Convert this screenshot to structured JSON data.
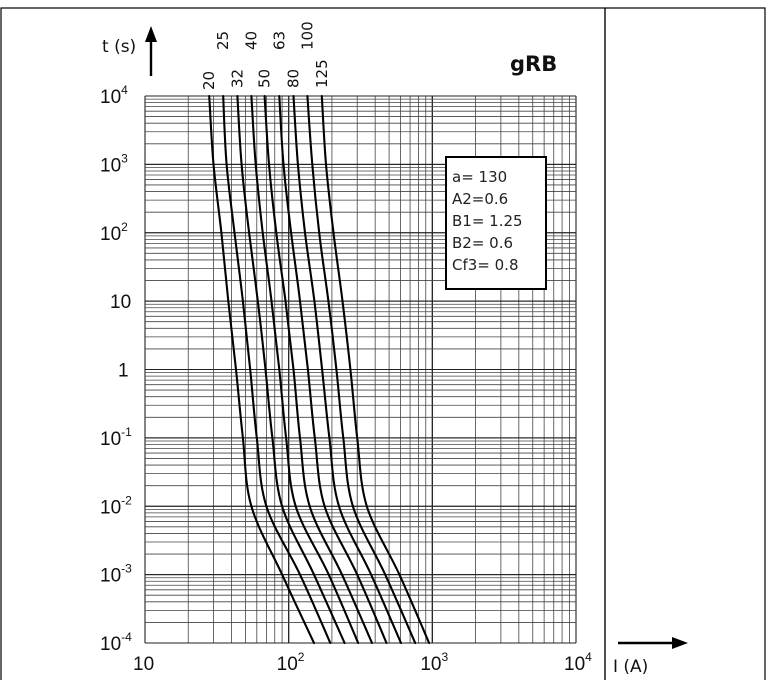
{
  "chart_data": {
    "type": "line",
    "title": "gRB",
    "xlabel": "I (A)",
    "ylabel": "t (s)",
    "x_scale": "log",
    "y_scale": "log",
    "xlim": [
      10,
      10000
    ],
    "ylim": [
      0.0001,
      10000
    ],
    "grid": true,
    "x_ticks": [
      {
        "value": 10,
        "base": "10",
        "exp": ""
      },
      {
        "value": 100,
        "base": "10",
        "exp": "2"
      },
      {
        "value": 1000,
        "base": "10",
        "exp": "3"
      },
      {
        "value": 10000,
        "base": "10",
        "exp": "4"
      }
    ],
    "y_ticks": [
      {
        "value": 10000,
        "base": "10",
        "exp": "4"
      },
      {
        "value": 1000,
        "base": "10",
        "exp": "3"
      },
      {
        "value": 100,
        "base": "10",
        "exp": "2"
      },
      {
        "value": 10,
        "base": "10",
        "exp": ""
      },
      {
        "value": 1,
        "base": "1",
        "exp": ""
      },
      {
        "value": 0.1,
        "base": "10",
        "exp": "-1"
      },
      {
        "value": 0.01,
        "base": "10",
        "exp": "-2"
      },
      {
        "value": 0.001,
        "base": "10",
        "exp": "-3"
      },
      {
        "value": 0.0001,
        "base": "10",
        "exp": "-4"
      }
    ],
    "params": [
      "a= 130",
      "A2=0.6",
      "B1= 1.25",
      "B2= 0.6",
      "Cf3= 0.8"
    ],
    "series": [
      {
        "name": "20",
        "points": [
          [
            28,
            10000
          ],
          [
            30,
            1000
          ],
          [
            34,
            100
          ],
          [
            38,
            10
          ],
          [
            43,
            1
          ],
          [
            48,
            0.1
          ],
          [
            55,
            0.01
          ],
          [
            90,
            0.001
          ],
          [
            150,
            0.0001
          ]
        ]
      },
      {
        "name": "25",
        "points": [
          [
            35,
            10000
          ],
          [
            37,
            1000
          ],
          [
            42,
            100
          ],
          [
            48,
            10
          ],
          [
            54,
            1
          ],
          [
            60,
            0.1
          ],
          [
            70,
            0.01
          ],
          [
            120,
            0.001
          ],
          [
            195,
            0.0001
          ]
        ]
      },
      {
        "name": "32",
        "points": [
          [
            44,
            10000
          ],
          [
            47,
            1000
          ],
          [
            53,
            100
          ],
          [
            61,
            10
          ],
          [
            69,
            1
          ],
          [
            77,
            0.1
          ],
          [
            90,
            0.01
          ],
          [
            150,
            0.001
          ],
          [
            245,
            0.0001
          ]
        ]
      },
      {
        "name": "40",
        "points": [
          [
            55,
            10000
          ],
          [
            59,
            1000
          ],
          [
            66,
            100
          ],
          [
            76,
            10
          ],
          [
            86,
            1
          ],
          [
            96,
            0.1
          ],
          [
            112,
            0.01
          ],
          [
            190,
            0.001
          ],
          [
            305,
            0.0001
          ]
        ]
      },
      {
        "name": "50",
        "points": [
          [
            68,
            10000
          ],
          [
            73,
            1000
          ],
          [
            82,
            100
          ],
          [
            95,
            10
          ],
          [
            108,
            1
          ],
          [
            120,
            0.1
          ],
          [
            140,
            0.01
          ],
          [
            235,
            0.001
          ],
          [
            380,
            0.0001
          ]
        ]
      },
      {
        "name": "63",
        "points": [
          [
            86,
            10000
          ],
          [
            92,
            1000
          ],
          [
            104,
            100
          ],
          [
            120,
            10
          ],
          [
            136,
            1
          ],
          [
            152,
            0.1
          ],
          [
            178,
            0.01
          ],
          [
            300,
            0.001
          ],
          [
            480,
            0.0001
          ]
        ]
      },
      {
        "name": "80",
        "points": [
          [
            108,
            10000
          ],
          [
            116,
            1000
          ],
          [
            130,
            100
          ],
          [
            151,
            10
          ],
          [
            171,
            1
          ],
          [
            192,
            0.1
          ],
          [
            224,
            0.01
          ],
          [
            375,
            0.001
          ],
          [
            605,
            0.0001
          ]
        ]
      },
      {
        "name": "100",
        "points": [
          [
            135,
            10000
          ],
          [
            146,
            1000
          ],
          [
            163,
            100
          ],
          [
            189,
            10
          ],
          [
            215,
            1
          ],
          [
            240,
            0.1
          ],
          [
            280,
            0.01
          ],
          [
            470,
            0.001
          ],
          [
            760,
            0.0001
          ]
        ]
      },
      {
        "name": "125",
        "points": [
          [
            170,
            10000
          ],
          [
            182,
            1000
          ],
          [
            205,
            100
          ],
          [
            237,
            10
          ],
          [
            269,
            1
          ],
          [
            300,
            0.1
          ],
          [
            350,
            0.01
          ],
          [
            590,
            0.001
          ],
          [
            950,
            0.0001
          ]
        ]
      }
    ]
  }
}
